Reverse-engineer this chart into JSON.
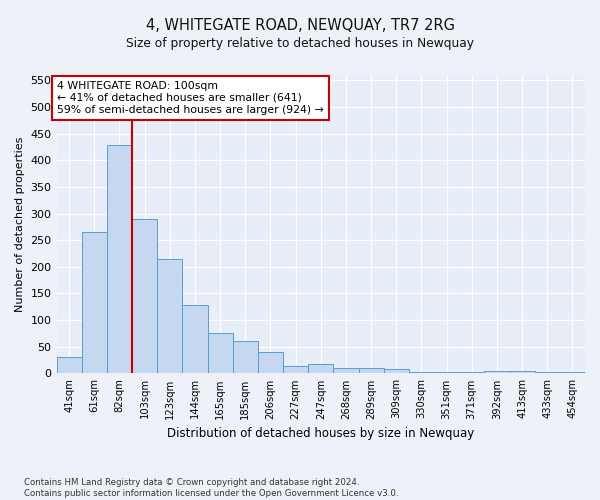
{
  "title": "4, WHITEGATE ROAD, NEWQUAY, TR7 2RG",
  "subtitle": "Size of property relative to detached houses in Newquay",
  "xlabel": "Distribution of detached houses by size in Newquay",
  "ylabel": "Number of detached properties",
  "categories": [
    "41sqm",
    "61sqm",
    "82sqm",
    "103sqm",
    "123sqm",
    "144sqm",
    "165sqm",
    "185sqm",
    "206sqm",
    "227sqm",
    "247sqm",
    "268sqm",
    "289sqm",
    "309sqm",
    "330sqm",
    "351sqm",
    "371sqm",
    "392sqm",
    "413sqm",
    "433sqm",
    "454sqm"
  ],
  "values": [
    30,
    265,
    428,
    290,
    215,
    128,
    76,
    60,
    40,
    14,
    17,
    10,
    10,
    8,
    2,
    2,
    2,
    5,
    5,
    2,
    2
  ],
  "bar_color": "#c5d8f0",
  "bar_edge_color": "#5b9bd5",
  "annotation_line1": "4 WHITEGATE ROAD: 100sqm",
  "annotation_line2": "← 41% of detached houses are smaller (641)",
  "annotation_line3": "59% of semi-detached houses are larger (924) →",
  "annotation_box_color": "white",
  "annotation_box_edge_color": "#cc0000",
  "vline_color": "#cc0000",
  "vline_x": 2.5,
  "ylim": [
    0,
    560
  ],
  "yticks": [
    0,
    50,
    100,
    150,
    200,
    250,
    300,
    350,
    400,
    450,
    500,
    550
  ],
  "footer_line1": "Contains HM Land Registry data © Crown copyright and database right 2024.",
  "footer_line2": "Contains public sector information licensed under the Open Government Licence v3.0.",
  "bg_color": "#eef2f8",
  "plot_bg_color": "#e8eef8",
  "grid_color": "#ffffff"
}
